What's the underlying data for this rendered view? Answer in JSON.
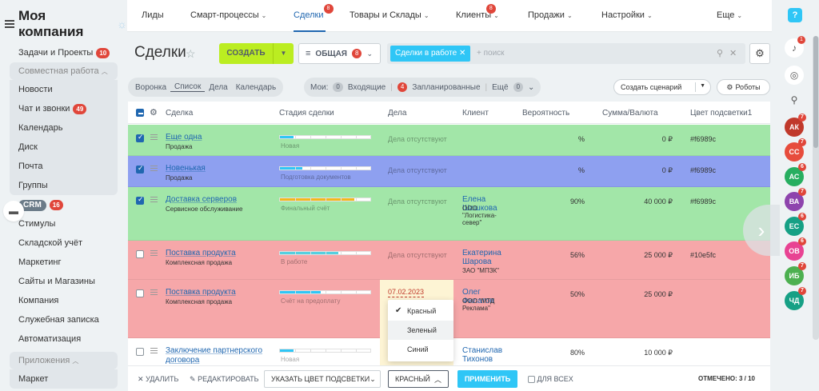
{
  "sidebar": {
    "logo": "Моя компания",
    "items": [
      {
        "label": "Задачи и Проекты",
        "count": "10"
      },
      {
        "label": "Совместная работа",
        "group": true
      },
      {
        "label": "Новости"
      },
      {
        "label": "Чат и звонки",
        "count": "49"
      },
      {
        "label": "Календарь"
      },
      {
        "label": "Диск"
      },
      {
        "label": "Почта"
      },
      {
        "label": "Группы"
      },
      {
        "label": "CRM",
        "count": "16"
      },
      {
        "label": "Стимулы"
      },
      {
        "label": "Складской учёт"
      },
      {
        "label": "Маркетинг"
      },
      {
        "label": "Сайты и Магазины"
      },
      {
        "label": "Компания"
      },
      {
        "label": "Служебная записка"
      },
      {
        "label": "Автоматизация"
      },
      {
        "label": "Приложения",
        "group": true
      },
      {
        "label": "Маркет"
      }
    ]
  },
  "topnav": {
    "items": [
      {
        "label": "Лиды"
      },
      {
        "label": "Смарт-процессы",
        "caret": "⌄"
      },
      {
        "label": "Сделки",
        "badge": "8"
      },
      {
        "label": "Товары и Склады",
        "caret": "⌄"
      },
      {
        "label": "Клиенты",
        "caret": "⌄",
        "badge": "8"
      },
      {
        "label": "Продажи",
        "caret": "⌄"
      },
      {
        "label": "Настройки",
        "caret": "⌄"
      },
      {
        "label": "Еще",
        "caret": "⌄"
      }
    ]
  },
  "toolbar": {
    "title": "Сделки",
    "create_label": "СОЗДАТЬ",
    "filter_label": "ОБЩАЯ",
    "filter_badge": "8",
    "search_tag": "Сделки в работе",
    "search_placeholder": "+ поиск"
  },
  "views": [
    "Воронка",
    "Список",
    "Дела",
    "Календарь"
  ],
  "counters": {
    "my_label": "Мои:",
    "incoming_count": "0",
    "incoming_label": "Входящие",
    "planned_count": "4",
    "planned_label": "Запланированные",
    "more_label": "Ещё",
    "more_count": "0"
  },
  "buttons": {
    "scenario": "Создать сценарий",
    "robots": "Роботы"
  },
  "grid": {
    "headers": [
      "Сделка",
      "Стадия сделки",
      "Дела",
      "Клиент",
      "Вероятность",
      "Сумма/Валюта",
      "Цвет подсветки1"
    ],
    "rows": [
      {
        "title": "Еще одна",
        "sub": "Продажа",
        "stage": "Новая",
        "deal": "Дела отсутствуют",
        "client": "",
        "company": "",
        "prob": "%",
        "sum": "0 ₽",
        "hl": "#f6989c",
        "checked": true
      },
      {
        "title": "Новенькая",
        "sub": "Продажа",
        "stage": "Подготовка документов",
        "deal": "Дела отсутствуют",
        "client": "",
        "company": "",
        "prob": "%",
        "sum": "0 ₽",
        "hl": "#f6989c",
        "checked": true
      },
      {
        "title": "Доставка серверов",
        "sub": "Сервисное обслуживание",
        "stage": "Финальный счёт",
        "deal": "Дела отсутствуют",
        "client": "Елена Шашкова",
        "company": "ООО \"Логистика-север\"",
        "prob": "90%",
        "sum": "40 000 ₽",
        "hl": "#f6989c",
        "checked": true
      },
      {
        "title": "Поставка продукта",
        "sub": "Комплексная продажа",
        "stage": "В работе",
        "deal": "Дела отсутствуют",
        "client": "Екатерина Шарова",
        "company": "ЗАО \"МПЗК\"",
        "prob": "56%",
        "sum": "25 000 ₽",
        "hl": "#10e5fc",
        "checked": false
      },
      {
        "title": "Поставка продукта",
        "sub": "Комплексная продажа",
        "stage": "Счёт на предоплату",
        "deal": "07.02.2023",
        "client": "Олег Филатов",
        "company": "ООО \"МТД Реклама\"",
        "prob": "50%",
        "sum": "25 000 ₽",
        "hl": "",
        "checked": false
      },
      {
        "title": "Заключение партнерского договора",
        "sub": "",
        "stage": "Новая",
        "deal": "",
        "client": "Станислав Тихонов",
        "company": "",
        "prob": "80%",
        "sum": "10 000 ₽",
        "hl": "",
        "checked": false
      }
    ]
  },
  "dropdown": {
    "items": [
      "Красный",
      "Зеленый",
      "Синий"
    ]
  },
  "actionbar": {
    "delete": "УДАЛИТЬ",
    "edit": "РЕДАКТИРОВАТЬ",
    "color": "УКАЗАТЬ ЦВЕТ ПОДСВЕТКИ",
    "red": "КРАСНЫЙ",
    "apply": "ПРИМЕНИТЬ",
    "forall": "ДЛЯ ВСЕХ",
    "marked": "ОТМЕЧЕНО: 3 / 10"
  },
  "rightbar": {
    "help": "?",
    "notif_badge": "1",
    "avatars": [
      {
        "initials": "АК",
        "color": "#c0392b",
        "badge": "7"
      },
      {
        "initials": "СС",
        "color": "#e74c3c",
        "badge": "7"
      },
      {
        "initials": "АС",
        "color": "#27ae60",
        "badge": "6"
      },
      {
        "initials": "ВА",
        "color": "#8e44ad",
        "badge": "7"
      },
      {
        "initials": "ЕС",
        "color": "#16a085",
        "badge": "6"
      },
      {
        "initials": "ОВ",
        "color": "#e84393",
        "badge": "6"
      },
      {
        "initials": "ИБ",
        "color": "#4cb050",
        "badge": "7"
      },
      {
        "initials": "ЧД",
        "color": "#16a085",
        "badge": "7"
      }
    ]
  }
}
